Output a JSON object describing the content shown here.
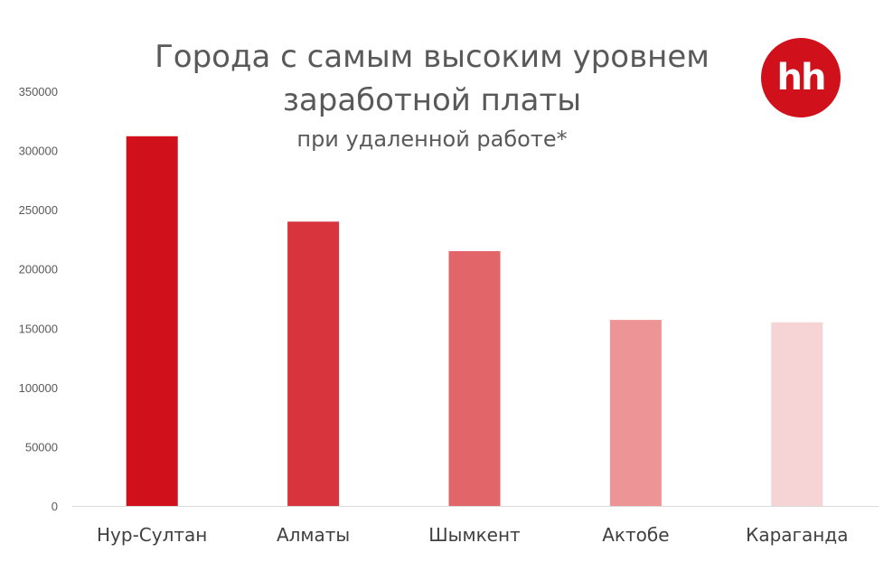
{
  "chart_data": {
    "type": "bar",
    "title_lines": [
      "Города с самым высоким уровнем",
      "заработной платы"
    ],
    "subtitle": "при удаленной работе*",
    "xlabel": "",
    "ylabel": "",
    "categories": [
      "Нур-Султан",
      "Алматы",
      "Шымкент",
      "Актобе",
      "Караганда"
    ],
    "values": [
      312000,
      240000,
      215000,
      157000,
      155000
    ],
    "bar_colors": [
      "#d0111b",
      "#d8343d",
      "#e2656a",
      "#ec9496",
      "#f6d4d5"
    ],
    "ylim": [
      0,
      350000
    ],
    "yticks": [
      0,
      50000,
      100000,
      150000,
      200000,
      250000,
      300000,
      350000
    ],
    "grid": false,
    "legend": "none"
  },
  "logo": {
    "text": "hh",
    "color": "#d0111b"
  }
}
